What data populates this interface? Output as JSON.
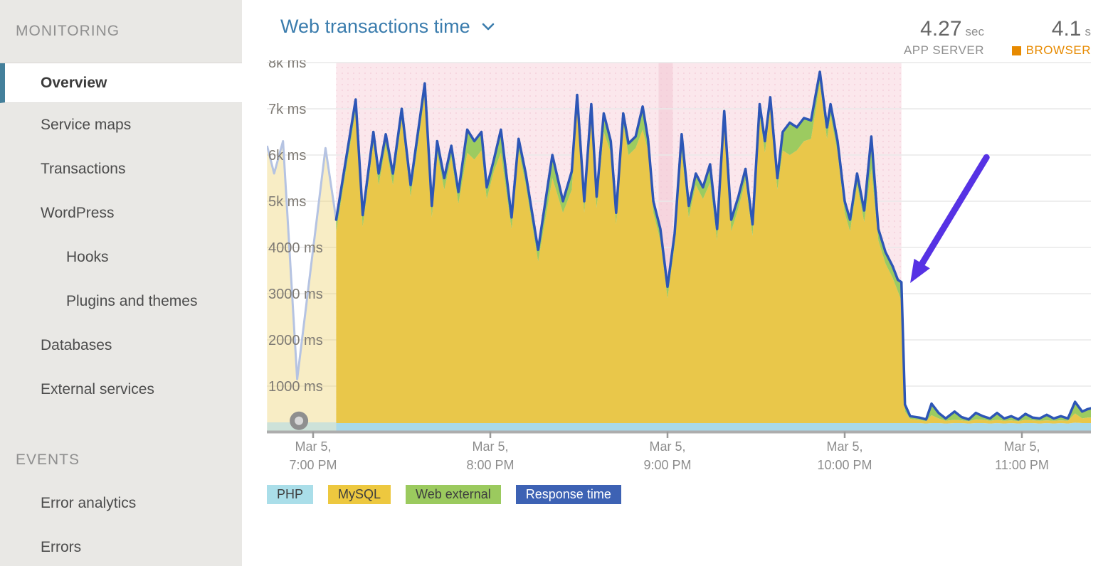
{
  "sidebar": {
    "sections": [
      {
        "label": "MONITORING",
        "items": [
          {
            "label": "Overview",
            "active": true,
            "indent": 0
          },
          {
            "label": "Service maps",
            "indent": 0
          },
          {
            "label": "Transactions",
            "indent": 0
          },
          {
            "label": "WordPress",
            "indent": 0
          },
          {
            "label": "Hooks",
            "indent": 1
          },
          {
            "label": "Plugins and themes",
            "indent": 1
          },
          {
            "label": "Databases",
            "indent": 0
          },
          {
            "label": "External services",
            "indent": 0
          }
        ]
      },
      {
        "label": "EVENTS",
        "items": [
          {
            "label": "Error analytics",
            "indent": 0
          },
          {
            "label": "Errors",
            "indent": 0
          }
        ]
      }
    ]
  },
  "header": {
    "title": "Web transactions time"
  },
  "metrics": {
    "app_server": {
      "value": "4.27",
      "unit": "sec",
      "label": "APP SERVER"
    },
    "browser": {
      "value": "4.1",
      "unit": "s",
      "label": "BROWSER",
      "color": "#e78a00"
    }
  },
  "chart_data": {
    "type": "area",
    "stacked": true,
    "title": "Web transactions time",
    "unit": "ms",
    "ylim": [
      0,
      8000
    ],
    "grid": true,
    "legend_position": "bottom",
    "y_ticks": [
      {
        "value": 8000,
        "label": "8k ms"
      },
      {
        "value": 7000,
        "label": "7k ms"
      },
      {
        "value": 6000,
        "label": "6k ms"
      },
      {
        "value": 5000,
        "label": "5k ms"
      },
      {
        "value": 4000,
        "label": "4000 ms"
      },
      {
        "value": 3000,
        "label": "3000 ms"
      },
      {
        "value": 2000,
        "label": "2000 ms"
      },
      {
        "value": 1000,
        "label": "1000 ms"
      }
    ],
    "x_ticks": [
      {
        "t": 0,
        "line1": "Mar 5,",
        "line2": "7:00 PM"
      },
      {
        "t": 1,
        "line1": "Mar 5,",
        "line2": "8:00 PM"
      },
      {
        "t": 2,
        "line1": "Mar 5,",
        "line2": "9:00 PM"
      },
      {
        "t": 3,
        "line1": "Mar 5,",
        "line2": "10:00 PM"
      },
      {
        "t": 4,
        "line1": "Mar 5,",
        "line2": "11:00 PM"
      }
    ],
    "legend": [
      {
        "label": "PHP",
        "color": "#aadee9",
        "text_color": "#3e3e3e"
      },
      {
        "label": "MySQL",
        "color": "#edc83f",
        "text_color": "#3e3e3e"
      },
      {
        "label": "Web external",
        "color": "#9bca5e",
        "text_color": "#3e3e3e"
      },
      {
        "label": "Response time",
        "color": "#3d62b4",
        "text_color": "#ffffff"
      }
    ],
    "incident_window": {
      "start_t": 0.13,
      "end_t": 3.32
    },
    "highlight_band": {
      "start_t": 1.95,
      "end_t": 2.03
    },
    "marker": {
      "t": -0.08,
      "ms": 250
    },
    "annotation_arrow": {
      "from": {
        "t": 3.8,
        "ms": 5950
      },
      "to": {
        "t": 3.37,
        "ms": 3230
      }
    },
    "faded_preview": {
      "t": [
        -0.26,
        -0.22,
        -0.17,
        -0.09,
        0.07,
        0.13
      ],
      "response_time": [
        6200,
        5600,
        6300,
        1150,
        6150,
        4600
      ]
    },
    "segments": [
      {
        "t": [
          0.13,
          0.24,
          0.28,
          0.34,
          0.37,
          0.41,
          0.45,
          0.5,
          0.55,
          0.63,
          0.67,
          0.7,
          0.74,
          0.78,
          0.82,
          0.87,
          0.91,
          0.95,
          0.98,
          1.02,
          1.06,
          1.12,
          1.16,
          1.2,
          1.27,
          1.35,
          1.41,
          1.46,
          1.49,
          1.53,
          1.57,
          1.6,
          1.64,
          1.68,
          1.71,
          1.75,
          1.78,
          1.82,
          1.86,
          1.89,
          1.92,
          1.96,
          2.0,
          2.04,
          2.08,
          2.12,
          2.16,
          2.2,
          2.24,
          2.28,
          2.32,
          2.36,
          2.4,
          2.44,
          2.48,
          2.52,
          2.55,
          2.58,
          2.62,
          2.65,
          2.69,
          2.73,
          2.77,
          2.81,
          2.86,
          2.9,
          2.92,
          2.96,
          3.0,
          3.03,
          3.07,
          3.11,
          3.15,
          3.19,
          3.23,
          3.27,
          3.3,
          3.32,
          3.34
        ],
        "php": [
          200,
          200,
          200,
          200,
          200,
          200,
          200,
          200,
          200,
          200,
          200,
          200,
          200,
          200,
          200,
          200,
          200,
          200,
          200,
          200,
          200,
          200,
          200,
          200,
          200,
          200,
          200,
          200,
          200,
          200,
          200,
          200,
          200,
          200,
          200,
          200,
          200,
          200,
          200,
          200,
          200,
          200,
          200,
          200,
          200,
          200,
          200,
          200,
          200,
          200,
          200,
          200,
          200,
          200,
          200,
          200,
          200,
          200,
          200,
          200,
          200,
          200,
          200,
          200,
          200,
          200,
          200,
          200,
          200,
          200,
          200,
          200,
          200,
          200,
          200,
          200,
          200,
          200,
          200
        ],
        "mysql": [
          4150,
          6750,
          4250,
          6050,
          5150,
          6000,
          5150,
          6550,
          4900,
          7100,
          4450,
          5850,
          5050,
          5750,
          4750,
          5850,
          5700,
          5900,
          4850,
          5450,
          5850,
          4200,
          5900,
          5150,
          3500,
          5300,
          4550,
          5050,
          6850,
          4550,
          6650,
          4650,
          6300,
          5850,
          4300,
          6450,
          5800,
          5950,
          6350,
          5900,
          4550,
          3950,
          2700,
          3850,
          5850,
          4450,
          5150,
          4850,
          5200,
          3950,
          6500,
          4150,
          4650,
          5250,
          4050,
          6650,
          5850,
          6800,
          5050,
          5900,
          5800,
          5900,
          6100,
          6150,
          7350,
          6150,
          6650,
          5850,
          4550,
          4150,
          5150,
          4350,
          5500,
          3950,
          3450,
          3150,
          2850,
          2650,
          250
        ],
        "web_external": [
          250,
          250,
          250,
          250,
          250,
          250,
          250,
          250,
          250,
          250,
          250,
          250,
          250,
          250,
          250,
          500,
          400,
          400,
          250,
          250,
          500,
          250,
          250,
          250,
          250,
          500,
          250,
          400,
          250,
          250,
          250,
          250,
          400,
          250,
          250,
          250,
          250,
          250,
          500,
          250,
          250,
          250,
          250,
          250,
          400,
          250,
          250,
          250,
          400,
          250,
          250,
          250,
          250,
          250,
          250,
          250,
          250,
          250,
          250,
          400,
          500,
          500,
          500,
          400,
          250,
          250,
          250,
          250,
          250,
          250,
          250,
          250,
          500,
          250,
          250,
          250,
          250,
          400,
          150
        ],
        "response_time": [
          4600,
          7200,
          4700,
          6500,
          5600,
          6450,
          5600,
          7000,
          5350,
          7550,
          4900,
          6300,
          5500,
          6200,
          5200,
          6550,
          6300,
          6500,
          5300,
          5900,
          6550,
          4650,
          6350,
          5600,
          3950,
          6000,
          5000,
          5650,
          7300,
          5000,
          7100,
          5100,
          6900,
          6300,
          4750,
          6900,
          6250,
          6400,
          7050,
          6350,
          5000,
          4400,
          3150,
          4300,
          6450,
          4900,
          5600,
          5300,
          5800,
          4400,
          6950,
          4600,
          5100,
          5700,
          4500,
          7100,
          6300,
          7250,
          5500,
          6500,
          6700,
          6600,
          6800,
          6750,
          7800,
          6600,
          7100,
          6300,
          5000,
          4600,
          5600,
          4800,
          6400,
          4400,
          3900,
          3600,
          3300,
          3250,
          600
        ]
      },
      {
        "t": [
          3.37,
          3.42,
          3.46,
          3.49,
          3.53,
          3.57,
          3.62,
          3.66,
          3.7,
          3.74,
          3.78,
          3.82,
          3.86,
          3.9,
          3.94,
          3.98,
          4.02,
          4.06,
          4.1,
          4.14,
          4.18,
          4.22,
          4.26,
          4.3,
          4.34,
          4.37,
          4.39
        ],
        "php": [
          200,
          200,
          190,
          200,
          200,
          190,
          200,
          200,
          190,
          200,
          200,
          190,
          200,
          190,
          200,
          190,
          200,
          200,
          190,
          200,
          190,
          200,
          190,
          210,
          200,
          200,
          200
        ],
        "mysql": [
          90,
          70,
          50,
          170,
          100,
          60,
          70,
          60,
          50,
          80,
          70,
          60,
          70,
          60,
          60,
          50,
          70,
          60,
          60,
          60,
          60,
          60,
          60,
          200,
          100,
          120,
          120
        ],
        "web_external": [
          60,
          50,
          40,
          250,
          120,
          50,
          180,
          70,
          40,
          140,
          80,
          50,
          150,
          50,
          90,
          40,
          130,
          60,
          50,
          120,
          50,
          90,
          50,
          250,
          150,
          180,
          200
        ],
        "response_time": [
          350,
          320,
          280,
          620,
          420,
          300,
          450,
          330,
          280,
          420,
          350,
          300,
          420,
          300,
          350,
          280,
          400,
          320,
          300,
          380,
          300,
          350,
          300,
          660,
          450,
          500,
          520
        ]
      }
    ],
    "colors": {
      "php": "#a9d9e9",
      "mysql": "#e9c74a",
      "web_external": "#9ccb60",
      "response": "#2d56b6",
      "incident_bg": "#fbe7ec",
      "highlight_band": "#f6d5de",
      "dots": "#f2c9d6",
      "faded_fill": "rgba(235,203,90,0.35)",
      "faded_php": "rgba(169,217,233,0.55)",
      "faded_line": "#b5c3e2",
      "grid": "#e9e9e9",
      "axis": "#adadad",
      "tick": "#9a9a9a",
      "arrow": "#5632e4",
      "marker_ring": "#8f8f8f",
      "marker_center": "#d8d8d8"
    }
  }
}
